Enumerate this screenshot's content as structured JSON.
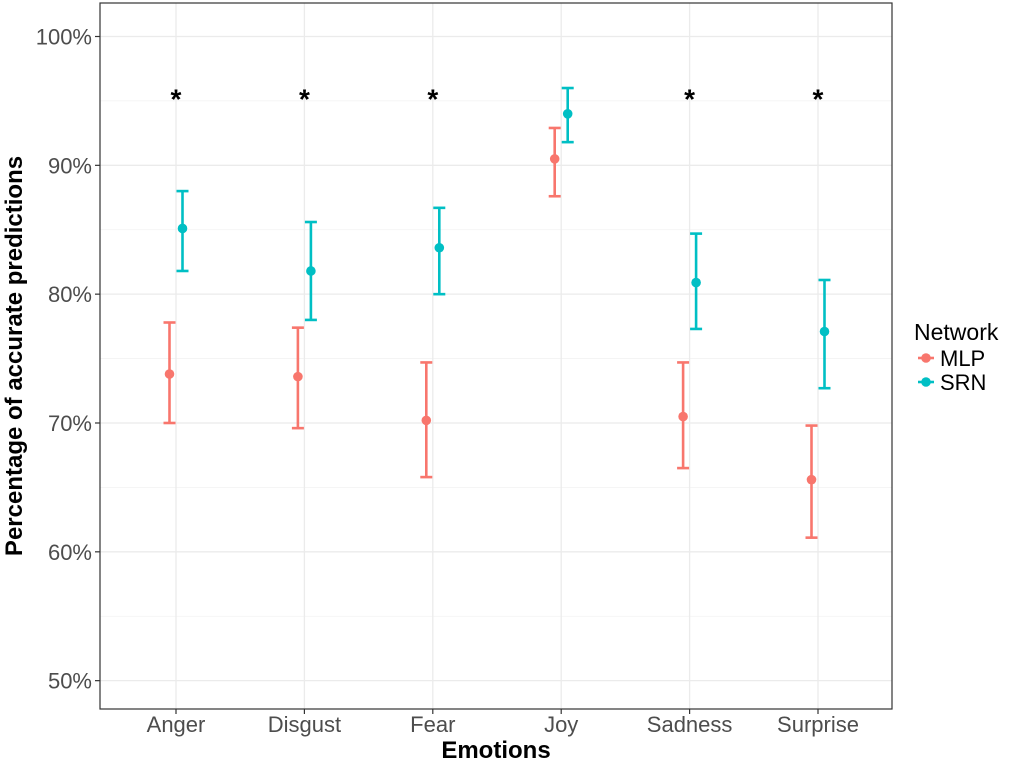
{
  "chart_data": {
    "type": "scatter",
    "variant": "point-with-error-bars",
    "xlabel": "Emotions",
    "ylabel": "Percentage of accurate predictions",
    "categories": [
      "Anger",
      "Disgust",
      "Fear",
      "Joy",
      "Sadness",
      "Surprise"
    ],
    "ylim": [
      47.8,
      102.6
    ],
    "y_ticks": [
      50,
      60,
      70,
      80,
      90,
      100
    ],
    "y_tick_labels": [
      "50%",
      "60%",
      "70%",
      "80%",
      "90%",
      "100%"
    ],
    "grid": true,
    "legend": {
      "title": "Network",
      "position": "right"
    },
    "series": [
      {
        "name": "MLP",
        "color": "#F8766D",
        "values": [
          73.8,
          73.6,
          70.2,
          90.5,
          70.5,
          65.6
        ],
        "lower": [
          70.0,
          69.6,
          65.8,
          87.6,
          66.5,
          61.1
        ],
        "upper": [
          77.8,
          77.4,
          74.7,
          92.9,
          74.7,
          69.8
        ]
      },
      {
        "name": "SRN",
        "color": "#00BFC4",
        "values": [
          85.1,
          81.8,
          83.6,
          94.0,
          80.9,
          77.1
        ],
        "lower": [
          81.8,
          78.0,
          80.0,
          91.8,
          77.3,
          72.7
        ],
        "upper": [
          88.0,
          85.6,
          86.7,
          96.0,
          84.7,
          81.1
        ]
      }
    ],
    "annotations": [
      {
        "category": "Anger",
        "text": "*"
      },
      {
        "category": "Disgust",
        "text": "*"
      },
      {
        "category": "Fear",
        "text": "*"
      },
      {
        "category": "Sadness",
        "text": "*"
      },
      {
        "category": "Surprise",
        "text": "*"
      }
    ],
    "annotation_y": 95.5
  }
}
